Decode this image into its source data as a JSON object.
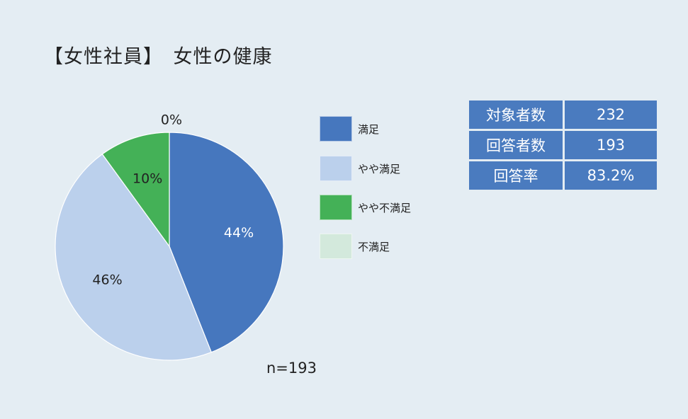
{
  "title": "【女性社員】　女性の健康",
  "chart_data": {
    "type": "pie",
    "title": "【女性社員】　女性の健康",
    "slices": [
      {
        "label": "満足",
        "value": 44,
        "display": "44%",
        "color": "#4677be"
      },
      {
        "label": "やや満足",
        "value": 46,
        "display": "46%",
        "color": "#bbd0ec"
      },
      {
        "label": "やや不満足",
        "value": 10,
        "display": "10%",
        "color": "#44b157"
      },
      {
        "label": "不満足",
        "value": 0,
        "display": "0%",
        "color": "#d3e9dc"
      }
    ],
    "legend_position": "right",
    "n_label": "n=193"
  },
  "stats": [
    {
      "key": "対象者数",
      "value": "232"
    },
    {
      "key": "回答者数",
      "value": "193"
    },
    {
      "key": "回答率",
      "value": "83.2%"
    }
  ],
  "colors": {
    "background": "#e4edf3",
    "table_fill": "#4a7bbf"
  }
}
